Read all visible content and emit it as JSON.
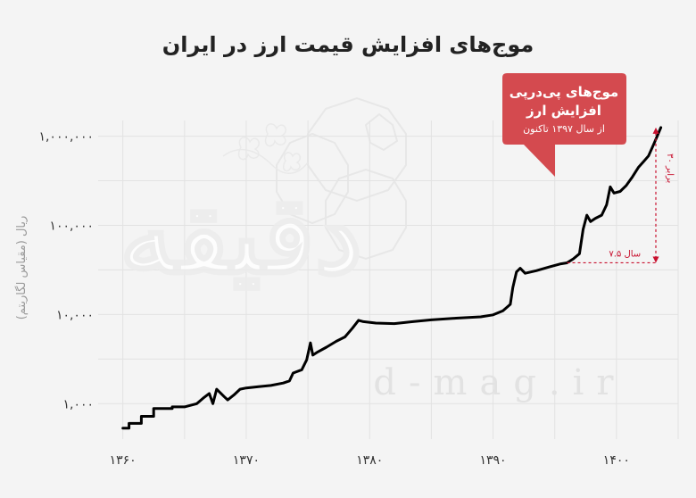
{
  "chart_data": {
    "type": "line",
    "title": "موج‌های افزایش قیمت ارز در ایران",
    "ylabel": "ریال (مقیاس لگاریتم)",
    "yscale": "log",
    "ylim": [
      400,
      1500000
    ],
    "xlim": [
      1358,
      1405
    ],
    "grid": true,
    "xticks": [
      {
        "value": 1360,
        "label": "۱۳۶۰"
      },
      {
        "value": 1370,
        "label": "۱۳۷۰"
      },
      {
        "value": 1380,
        "label": "۱۳۸۰"
      },
      {
        "value": 1390,
        "label": "۱۳۹۰"
      },
      {
        "value": 1400,
        "label": "۱۴۰۰"
      }
    ],
    "yticks": [
      {
        "value": 1000,
        "label": "۱,۰۰۰"
      },
      {
        "value": 10000,
        "label": "۱۰,۰۰۰"
      },
      {
        "value": 100000,
        "label": "۱۰۰,۰۰۰"
      },
      {
        "value": 1000000,
        "label": "۱,۰۰۰,۰۰۰"
      }
    ],
    "series": [
      {
        "values": [
          [
            1360.0,
            530
          ],
          [
            1360.5,
            530
          ],
          [
            1360.5,
            600
          ],
          [
            1361.5,
            600
          ],
          [
            1361.5,
            720
          ],
          [
            1362.5,
            720
          ],
          [
            1362.5,
            880
          ],
          [
            1364.0,
            880
          ],
          [
            1364.0,
            920
          ],
          [
            1365.0,
            920
          ],
          [
            1366.0,
            1000
          ],
          [
            1366.5,
            1150
          ],
          [
            1367.0,
            1300
          ],
          [
            1367.3,
            1000
          ],
          [
            1367.6,
            1450
          ],
          [
            1368.2,
            1200
          ],
          [
            1368.5,
            1100
          ],
          [
            1369.0,
            1250
          ],
          [
            1369.5,
            1450
          ],
          [
            1370.0,
            1500
          ],
          [
            1371.0,
            1550
          ],
          [
            1372.0,
            1600
          ],
          [
            1373.0,
            1700
          ],
          [
            1373.5,
            1800
          ],
          [
            1373.8,
            2200
          ],
          [
            1374.5,
            2400
          ],
          [
            1374.9,
            3100
          ],
          [
            1375.2,
            4800
          ],
          [
            1375.4,
            3500
          ],
          [
            1375.8,
            3800
          ],
          [
            1376.5,
            4300
          ],
          [
            1377.3,
            5000
          ],
          [
            1378.0,
            5600
          ],
          [
            1378.6,
            7000
          ],
          [
            1379.1,
            8600
          ],
          [
            1379.5,
            8300
          ],
          [
            1380.5,
            8000
          ],
          [
            1382.0,
            7900
          ],
          [
            1383.5,
            8300
          ],
          [
            1385.0,
            8700
          ],
          [
            1387.0,
            9100
          ],
          [
            1389.0,
            9400
          ],
          [
            1390.0,
            9900
          ],
          [
            1390.8,
            11000
          ],
          [
            1391.4,
            13000
          ],
          [
            1391.6,
            20000
          ],
          [
            1391.9,
            30000
          ],
          [
            1392.2,
            33000
          ],
          [
            1392.6,
            29000
          ],
          [
            1393.5,
            31000
          ],
          [
            1394.5,
            34000
          ],
          [
            1395.5,
            37000
          ],
          [
            1396.0,
            38000
          ],
          [
            1396.5,
            42000
          ],
          [
            1397.0,
            48000
          ],
          [
            1397.3,
            90000
          ],
          [
            1397.6,
            130000
          ],
          [
            1397.9,
            110000
          ],
          [
            1398.3,
            120000
          ],
          [
            1398.8,
            130000
          ],
          [
            1399.2,
            170000
          ],
          [
            1399.5,
            270000
          ],
          [
            1399.8,
            230000
          ],
          [
            1400.3,
            240000
          ],
          [
            1400.8,
            280000
          ],
          [
            1401.3,
            350000
          ],
          [
            1401.8,
            450000
          ],
          [
            1402.2,
            520000
          ],
          [
            1402.6,
            600000
          ],
          [
            1403.0,
            800000
          ],
          [
            1403.3,
            1000000
          ],
          [
            1403.6,
            1250000
          ]
        ]
      }
    ],
    "annotations": {
      "bubble_title_1": "موج‌های پی‌درپی",
      "bubble_title_2": "افزایش ارز",
      "bubble_sub": "از سال ۱۳۹۷ تاکنون",
      "vertical_label": "۳۰ برابر",
      "horizontal_label": "۷.۵ سال"
    },
    "watermark": {
      "logo": "دقیقه",
      "site": "d-mag.ir"
    },
    "colors": {
      "line": "#000000",
      "accent": "#c8102e",
      "bubble": "#d44a4f",
      "grid": "#e2e2e2",
      "background": "#f4f4f4"
    }
  }
}
